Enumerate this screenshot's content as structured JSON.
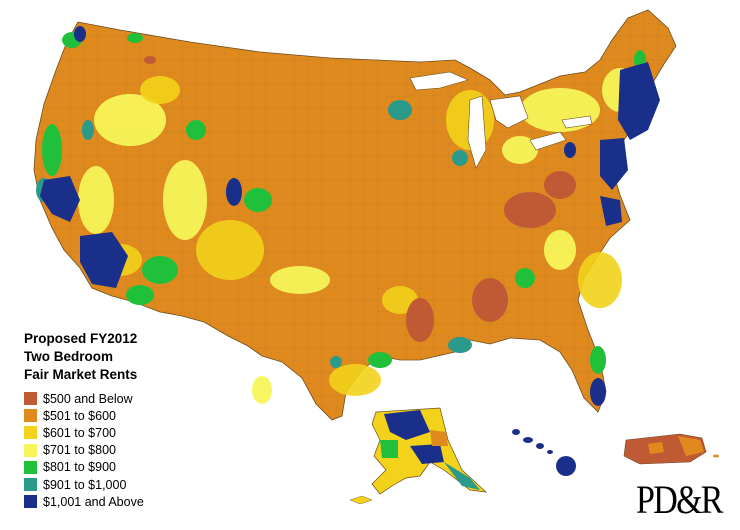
{
  "legend": {
    "title_lines": [
      "Proposed FY2012",
      "Two Bedroom",
      "Fair Market Rents"
    ],
    "items": [
      {
        "label": "$500 and Below",
        "color": "#c05a35"
      },
      {
        "label": "$501 to $600",
        "color": "#e08a1e"
      },
      {
        "label": "$601 to $700",
        "color": "#f2d21a"
      },
      {
        "label": "$701 to $800",
        "color": "#f7f55a"
      },
      {
        "label": "$801 to $900",
        "color": "#21c03a"
      },
      {
        "label": "$901 to $1,000",
        "color": "#2a9a8a"
      },
      {
        "label": "$1,001 and Above",
        "color": "#1a2f8a"
      }
    ]
  },
  "logo": "PD&R",
  "colors": {
    "border": "#8a6a40",
    "background": "#ffffff"
  }
}
